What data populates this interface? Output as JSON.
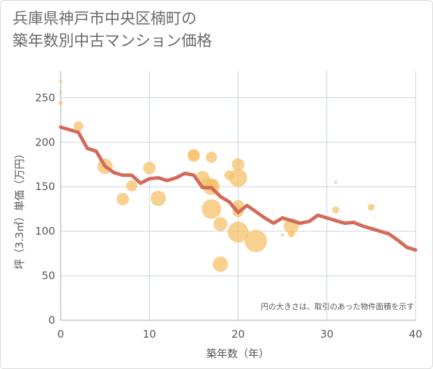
{
  "title": {
    "line1": "兵庫県神戸市中央区楠町の",
    "line2": "築年数別中古マンション価格"
  },
  "chart_data": {
    "type": "scatter",
    "xlabel": "築年数（年）",
    "ylabel": "坪（3.3㎡）単価（万円）",
    "xlim": [
      0,
      40
    ],
    "ylim": [
      0,
      280
    ],
    "xticks": [
      0,
      10,
      20,
      30,
      40
    ],
    "yticks": [
      0,
      50,
      100,
      150,
      200,
      250
    ],
    "grid": true,
    "note": "円の大きさは、取引のあった物件面積を示す",
    "colors": {
      "bubble": "#f5c26b",
      "line": "#d36b5b",
      "grid": "#c8d3e0"
    },
    "points": [
      {
        "x": 0,
        "y": 268,
        "s": 2
      },
      {
        "x": 0,
        "y": 256,
        "s": 2
      },
      {
        "x": 0,
        "y": 244,
        "s": 3
      },
      {
        "x": 2,
        "y": 218,
        "s": 7
      },
      {
        "x": 5,
        "y": 173,
        "s": 11
      },
      {
        "x": 7,
        "y": 136,
        "s": 9
      },
      {
        "x": 8,
        "y": 151,
        "s": 8
      },
      {
        "x": 10,
        "y": 171,
        "s": 9
      },
      {
        "x": 11,
        "y": 137,
        "s": 11
      },
      {
        "x": 15,
        "y": 186,
        "s": 8
      },
      {
        "x": 15,
        "y": 185,
        "s": 9
      },
      {
        "x": 16,
        "y": 160,
        "s": 10
      },
      {
        "x": 16.5,
        "y": 154,
        "s": 8
      },
      {
        "x": 17,
        "y": 183,
        "s": 8
      },
      {
        "x": 17,
        "y": 152,
        "s": 9
      },
      {
        "x": 17,
        "y": 150,
        "s": 12
      },
      {
        "x": 17,
        "y": 125,
        "s": 14
      },
      {
        "x": 18,
        "y": 108,
        "s": 10
      },
      {
        "x": 18,
        "y": 63,
        "s": 11
      },
      {
        "x": 19,
        "y": 163,
        "s": 7
      },
      {
        "x": 20,
        "y": 175,
        "s": 9
      },
      {
        "x": 20,
        "y": 160,
        "s": 13
      },
      {
        "x": 20,
        "y": 128,
        "s": 9
      },
      {
        "x": 20,
        "y": 122,
        "s": 8
      },
      {
        "x": 20,
        "y": 99,
        "s": 15
      },
      {
        "x": 22,
        "y": 89,
        "s": 16
      },
      {
        "x": 25,
        "y": 96,
        "s": 2
      },
      {
        "x": 26,
        "y": 106,
        "s": 11
      },
      {
        "x": 26,
        "y": 97,
        "s": 5
      },
      {
        "x": 31,
        "y": 155,
        "s": 2
      },
      {
        "x": 31,
        "y": 124,
        "s": 5
      },
      {
        "x": 35,
        "y": 127,
        "s": 5
      },
      {
        "x": 35.5,
        "y": 117,
        "s": 1
      }
    ],
    "line": {
      "x": [
        0,
        1,
        2,
        3,
        4,
        5,
        6,
        7,
        8,
        9,
        10,
        11,
        12,
        13,
        14,
        15,
        16,
        17,
        18,
        19,
        20,
        21,
        22,
        23,
        24,
        25,
        26,
        27,
        28,
        29,
        30,
        31,
        32,
        33,
        34,
        35,
        36,
        37,
        38,
        39,
        40
      ],
      "y": [
        217,
        214,
        211,
        193,
        190,
        173,
        166,
        163,
        163,
        154,
        159,
        160,
        157,
        160,
        165,
        163,
        149,
        149,
        139,
        133,
        121,
        129,
        122,
        115,
        109,
        115,
        112,
        109,
        111,
        118,
        115,
        112,
        109,
        110,
        106,
        103,
        100,
        97,
        90,
        82,
        79
      ]
    }
  }
}
